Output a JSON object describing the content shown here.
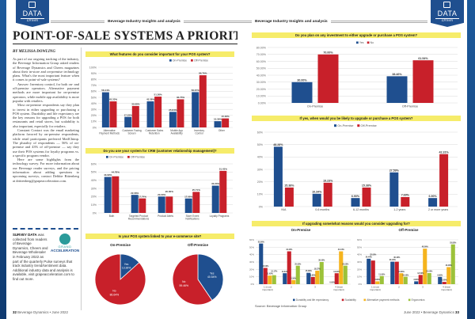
{
  "header": {
    "runner": "Beverage Industry Insights and analysis",
    "badge_top": "DATA",
    "badge_bottom": "Driven"
  },
  "article": {
    "title": "POINT-OF-SALE SYSTEMS A PRIORITY",
    "byline": "BY MELISSA DOWLING",
    "paragraphs": [
      "As part of our ongoing tracking of the industry, the Beverage Information Group asked readers of Beverage Dynamics and Cheers magazines about their in-store and on-premise technology plans. What's the most important feature when it comes to point-of-sale systems?",
      "Answer: Inventory control, for both on- and off-premise operators. Alternative payment methods are more important for on-premise operators, while mobile app availability is more popular with retailers.",
      "Most on-premise respondents say they plan to invest in either upgrading or purchasing a POS system. Durability and life expectancy are the key reasons for upgrading a POS for both restaurants and retail stores, but scalability is also important, especially for retailers.",
      "Constant Contact was the email marketing platform favored by on-premise respondents, while retail participants preferred MailChimp. The plurality of respondents — 56% of on-premise and 43% of off-premise — say they use their POS systems for loyalty programs vs. a specific program vendor.",
      "Here are some highlights from the technology survey. For more information about our Beverage reader surveys, and the pricing information about adding questions to upcoming surveys, contact Debbie Rittenberg at drittenberg@grapeacceleration.com."
    ],
    "survey_note": {
      "lead": "SURVEY DATA",
      "text": "was collected from readers of Beverage Dynamics, Cheers and Beverage Wholesaler in February 2022 as part of the quarterly Pulse surveys that track industry trend/sentiment data. Additional industry data and analysis is available, visit grapeacceleration.com to find out more."
    },
    "logo": {
      "line1": "GRAND",
      "line2": "ACCELERATION"
    }
  },
  "folio": {
    "left_page": "32",
    "left_text": "Beverage Dynamics • June 2022",
    "right_text": "June 2022 • Beverage Dynamics",
    "right_page": "33"
  },
  "source": "Source: Beverage Information Group",
  "colors": {
    "on": "#1f4f8f",
    "off": "#c8202a",
    "yellow": "#f5b41e",
    "green": "#9cc23a",
    "title_bar": "#f6ec6a"
  },
  "chart_data": [
    {
      "id": "features",
      "type": "bar",
      "title": "What features do you consider important for your POS system?",
      "categories": [
        "Alternative Payment Methods",
        "Customer Facing Screen",
        "Customer Sales Retention",
        "Mobile App Availability",
        "Inventory Control",
        "Other"
      ],
      "series": [
        {
          "name": "On-Premise",
          "values": [
            58.44,
            17.53,
            43.38,
            25.84,
            58.67,
            10.39
          ]
        },
        {
          "name": "Off-Premise",
          "values": [
            43.33,
            35.68,
            51.26,
            46.75,
            86.76,
            15.0
          ]
        }
      ],
      "ylim": [
        0,
        100
      ],
      "yticks": [
        "0%",
        "10%",
        "20%",
        "30%",
        "40%",
        "50%",
        "60%",
        "70%",
        "80%",
        "90%",
        "100%"
      ],
      "legend": "top-right"
    },
    {
      "id": "crm",
      "type": "bar",
      "title": "Do you use your system for CRM (customer relationship management)?",
      "categories": [
        "Both",
        "Targeted Product Recommendations",
        "Product Alerts",
        "Store Event Notifications",
        "Loyalty Programs"
      ],
      "series": [
        {
          "name": "On-Premise",
          "values": [
            43.99,
            22.08,
            20.0,
            17.66,
            33.33
          ]
        },
        {
          "name": "Off-Premise",
          "values": [
            44.78,
            17.74,
            20.0,
            25.71,
            51.43
          ]
        }
      ],
      "ylim": [
        0,
        60
      ],
      "yticks": [
        "0%",
        "10%",
        "20%",
        "30%",
        "40%",
        "50%",
        "60%"
      ],
      "legend": "top-left"
    },
    {
      "id": "ecommerce",
      "type": "pie",
      "title": "Is your POS system linked to your e-commerce site?",
      "pies": [
        {
          "name": "On-Premise",
          "slices": [
            {
              "label": "Yes",
              "value": 13.36
            },
            {
              "label": "No",
              "value": 86.64
            }
          ]
        },
        {
          "name": "Off-Premise",
          "slices": [
            {
              "label": "Yes",
              "value": 40.54
            },
            {
              "label": "No",
              "value": 59.46
            }
          ]
        }
      ]
    },
    {
      "id": "invest",
      "type": "bar",
      "title": "Do you plan on any investment to either upgrade or purchase a POS system?",
      "categories": [
        "On-Premise",
        "Off-Premise"
      ],
      "series": [
        {
          "name": "Yes",
          "values": [
            30.0,
            38.46
          ]
        },
        {
          "name": "No",
          "values": [
            70.0,
            61.54
          ]
        }
      ],
      "ylim": [
        0,
        80
      ],
      "yticks": [
        "0.00%",
        "10.00%",
        "20.00%",
        "30.00%",
        "40.00%",
        "50.00%",
        "60.00%",
        "70.00%",
        "80.00%"
      ],
      "legend": "top-center"
    },
    {
      "id": "when",
      "type": "bar",
      "title": "If yes, when would you be likely to upgrade or purchase a POS system?",
      "categories": [
        "N/A",
        "0-6 months",
        "6-12 months",
        "1-2 years",
        "2 or more years"
      ],
      "series": [
        {
          "name": "On-Premise",
          "values": [
            48.28,
            10.34,
            6.9,
            27.59,
            6.9
          ]
        },
        {
          "name": "Off-Premise",
          "values": [
            15.38,
            19.23,
            15.38,
            7.69,
            42.31
          ]
        }
      ],
      "ylim": [
        0,
        60
      ],
      "yticks": [
        "0%",
        "10%",
        "20%",
        "30%",
        "40%",
        "50%",
        "60%"
      ],
      "legend": "top-center"
    },
    {
      "id": "reasons",
      "type": "bar",
      "title": "If upgrading some/what reasons would you consider upgrading for?",
      "legend_items": [
        "Durability and life expectancy",
        "Scalability",
        "Alternative payment methods",
        "Ergonomics"
      ],
      "categories": [
        "1 (most important)",
        "2",
        "3",
        "4 (least important)"
      ],
      "ylim": [
        0,
        60
      ],
      "yticks": [
        "0%",
        "10%",
        "20%",
        "30%",
        "40%",
        "50%",
        "60%"
      ],
      "panels": [
        {
          "name": "On-Premise",
          "series": [
            {
              "name": "Durability and life expectancy",
              "values": [
                55.0,
                14.81,
                15.38,
                0.0
              ]
            },
            {
              "name": "Scalability",
              "values": [
                22.0,
                44.44,
                9.68,
                14.81
              ]
            },
            {
              "name": "Alternative payment methods",
              "values": [
                11.63,
                5.56,
                18.27,
                44.44
              ]
            },
            {
              "name": "Ergonomics",
              "values": [
                12.17,
                25.0,
                30.0,
                25.0
              ]
            }
          ]
        },
        {
          "name": "Off-Premise",
          "series": [
            {
              "name": "Durability and life expectancy",
              "values": [
                34.44,
                30.43,
                3.85,
                9.8
              ]
            },
            {
              "name": "Scalability",
              "values": [
                32.0,
                30.4,
                12.5,
                3.08
              ]
            },
            {
              "name": "Alternative payment methods",
              "values": [
                3.85,
                14.8,
                48.08,
                23.08
              ]
            },
            {
              "name": "Ergonomics",
              "values": [
                11.0,
                10.0,
                15.0,
                53.85
              ]
            }
          ]
        }
      ]
    }
  ]
}
